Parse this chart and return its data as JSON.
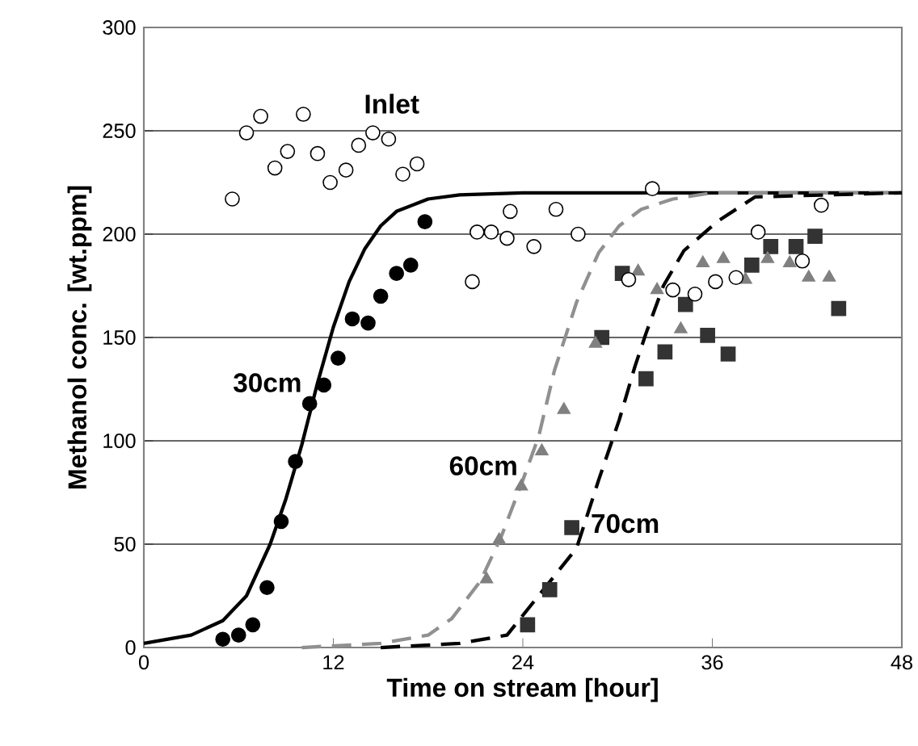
{
  "chart_data": {
    "type": "scatter",
    "xlabel": "Time on stream [hour]",
    "ylabel": "Methanol conc. [wt.ppm]",
    "xlim": [
      0,
      48
    ],
    "xticks": [
      0,
      12,
      24,
      36,
      48
    ],
    "ylim": [
      0,
      300
    ],
    "yticks": [
      0,
      50,
      100,
      150,
      200,
      250,
      300
    ],
    "grid": "y",
    "series": [
      {
        "marker": "circle",
        "color": "#000000",
        "x": [
          5.6,
          6.5,
          7.4,
          8.3,
          9.1,
          10.1,
          11.0,
          11.8,
          12.8,
          13.6,
          14.5,
          15.5,
          16.4,
          17.3,
          20.8,
          21.1,
          22.0,
          23.0,
          23.2,
          24.7,
          26.1,
          27.5,
          30.7,
          32.2,
          33.5,
          34.9,
          36.2,
          37.5,
          38.9,
          41.7,
          42.9
        ],
        "values": [
          217,
          249,
          257,
          232,
          240,
          258,
          239,
          225,
          231,
          243,
          249,
          246,
          229,
          234,
          177,
          201,
          201,
          198,
          211,
          194,
          212,
          200,
          178,
          222,
          173,
          171,
          177,
          179,
          201,
          187,
          214
        ]
      },
      {
        "marker": "circle",
        "color": "#000000",
        "x": [
          5.0,
          6.0,
          6.9,
          7.8,
          8.7,
          9.6,
          10.5,
          11.4,
          12.3,
          13.2,
          14.2,
          15.0,
          16.0,
          16.9,
          17.8
        ],
        "values": [
          4,
          6,
          11,
          29,
          61,
          90,
          118,
          127,
          140,
          159,
          157,
          170,
          181,
          185,
          206
        ]
      },
      {
        "marker": "triangle",
        "color": "#808080",
        "x": [
          21.7,
          22.5,
          23.9,
          25.2,
          26.6,
          28.6,
          31.3,
          32.5,
          34.0,
          35.4,
          36.7,
          38.1,
          39.5,
          40.9,
          42.1,
          43.4
        ],
        "values": [
          33,
          52,
          78,
          95,
          115,
          147,
          182,
          173,
          154,
          186,
          188,
          178,
          188,
          186,
          179,
          179
        ]
      },
      {
        "marker": "square",
        "color": "#333333",
        "x": [
          24.3,
          25.7,
          27.1,
          29.0,
          30.3,
          31.8,
          33.0,
          34.3,
          35.7,
          37.0,
          38.5,
          39.7,
          41.3,
          42.5,
          44.0
        ],
        "values": [
          11,
          28,
          58,
          150,
          181,
          130,
          143,
          166,
          151,
          142,
          185,
          194,
          194,
          199,
          164
        ]
      },
      {
        "type": "line",
        "line_style": "solid",
        "color": "#000000",
        "x": [
          0,
          3,
          5,
          6.5,
          8,
          9,
          10,
          11,
          12,
          13,
          14,
          15,
          16,
          18,
          20,
          24,
          48
        ],
        "values": [
          2,
          6,
          13,
          25,
          50,
          72,
          98,
          128,
          155,
          177,
          193,
          204,
          211,
          217,
          219,
          220,
          220
        ]
      },
      {
        "type": "line",
        "line_style": "dashed",
        "color": "#909090",
        "x": [
          10,
          15,
          18,
          19.5,
          21.3,
          22.6,
          24.0,
          25.0,
          26.0,
          27.4,
          28.8,
          30.1,
          31.5,
          33.5,
          36,
          48
        ],
        "values": [
          0,
          2,
          6,
          14,
          32,
          53,
          81,
          102,
          134,
          167,
          191,
          204,
          212,
          217,
          220,
          220
        ]
      },
      {
        "type": "line",
        "line_style": "dashed",
        "color": "#000000",
        "x": [
          15,
          20,
          23.0,
          27.4,
          28.8,
          30.1,
          31.1,
          31.8,
          32.9,
          34.2,
          36.3,
          38.7,
          48
        ],
        "values": [
          0,
          2,
          6,
          48,
          81,
          110,
          136,
          152,
          175,
          192,
          206,
          218,
          220
        ]
      }
    ],
    "annotations": [
      "Inlet",
      "30cm",
      "60cm",
      "70cm"
    ]
  }
}
